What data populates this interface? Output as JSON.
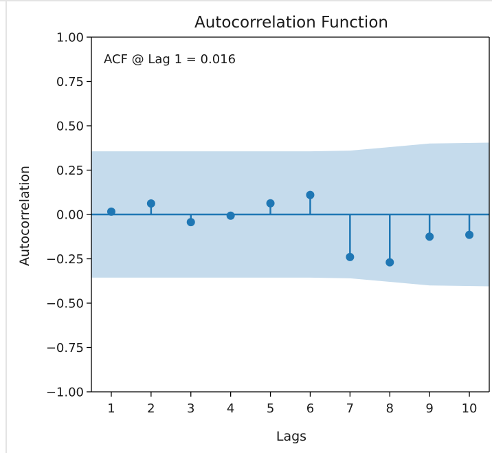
{
  "chart_data": {
    "type": "stem",
    "title": "Autocorrelation Function",
    "xlabel": "Lags",
    "ylabel": "Autocorrelation",
    "annotation": "ACF @ Lag 1 = 0.016",
    "ylim": [
      -1.0,
      1.0
    ],
    "xlim": [
      0.5,
      10.5
    ],
    "yticks": [
      1.0,
      0.75,
      0.5,
      0.25,
      0.0,
      -0.25,
      -0.5,
      -0.75,
      -1.0
    ],
    "ytick_labels": [
      "1.00",
      "0.75",
      "0.50",
      "0.25",
      "0.00",
      "−0.25",
      "−0.50",
      "−0.75",
      "−1.00"
    ],
    "xticks": [
      1,
      2,
      3,
      4,
      5,
      6,
      7,
      8,
      9,
      10
    ],
    "xtick_labels": [
      "1",
      "2",
      "3",
      "4",
      "5",
      "6",
      "7",
      "8",
      "9",
      "10"
    ],
    "lags": [
      1,
      2,
      3,
      4,
      5,
      6,
      7,
      8,
      9,
      10
    ],
    "values": [
      0.016,
      0.062,
      -0.043,
      -0.007,
      0.063,
      0.11,
      -0.24,
      -0.27,
      -0.125,
      -0.115
    ],
    "confidence_band": {
      "x": [
        0.5,
        6.0,
        7.0,
        8.0,
        9.0,
        10.5
      ],
      "upper": [
        0.356,
        0.356,
        0.36,
        0.38,
        0.4,
        0.405
      ],
      "lower": [
        -0.356,
        -0.356,
        -0.36,
        -0.38,
        -0.4,
        -0.405
      ]
    },
    "grid": false,
    "colors": {
      "stem": "#1f77b4",
      "band": "#c5dbec",
      "baseline": "#1f77b4"
    }
  }
}
